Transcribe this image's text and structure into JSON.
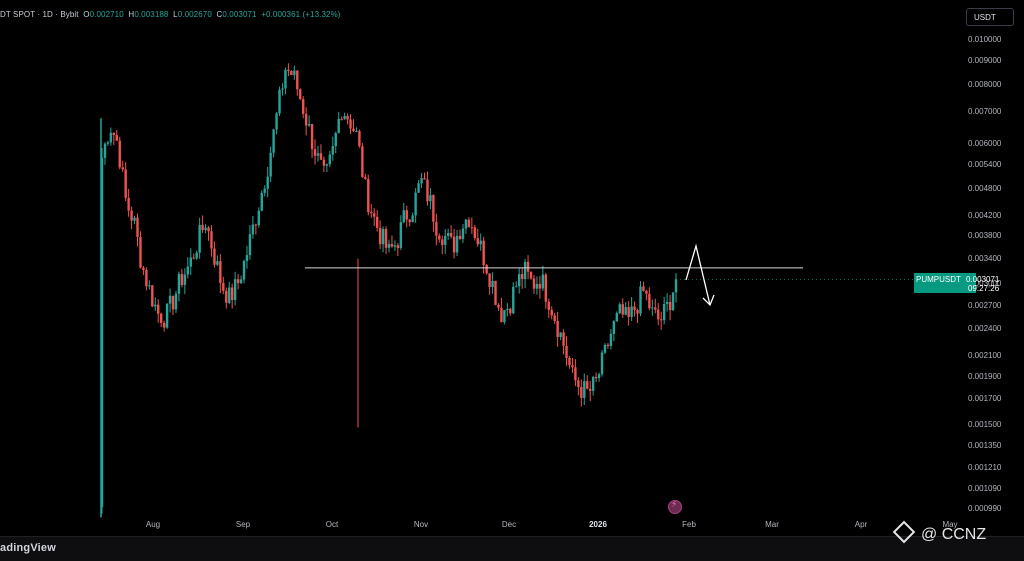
{
  "header": {
    "symbol_text": "DT SPOT · 1D · Bybit",
    "open_label": "O",
    "open_value": "0.002710",
    "high_label": "H",
    "high_value": "0.003188",
    "low_label": "L",
    "low_value": "0.002670",
    "close_label": "C",
    "close_value": "0.003071",
    "change_text": "+0.000361 (+13.32%)"
  },
  "toolbar": {
    "currency_label": "USDT"
  },
  "price_label": {
    "symbol": "PUMPUSDT",
    "value": "0.003071",
    "countdown": "09:27:26",
    "color": "#089981"
  },
  "colors": {
    "up": "#26a69a",
    "down": "#ef5350",
    "background": "#000000"
  },
  "chart_data": {
    "type": "candlestick",
    "y_scale": "log",
    "y_ticks": [
      "0.010000",
      "0.009000",
      "0.008000",
      "0.007000",
      "0.006000",
      "0.005400",
      "0.004800",
      "0.004200",
      "0.003800",
      "0.003400",
      "0.003000",
      "0.002700",
      "0.002400",
      "0.002100",
      "0.001900",
      "0.001700",
      "0.001500",
      "0.001350",
      "0.001210",
      "0.001090",
      "0.000990"
    ],
    "x_ticks": [
      {
        "label": "Aug"
      },
      {
        "label": "Sep"
      },
      {
        "label": "Oct"
      },
      {
        "label": "Nov"
      },
      {
        "label": "Dec"
      },
      {
        "label": "2026",
        "bold": true
      },
      {
        "label": "Feb"
      },
      {
        "label": "Mar"
      },
      {
        "label": "Apr"
      },
      {
        "label": "May"
      }
    ],
    "resistance_level": 0.00325,
    "close_path": [
      0.0056,
      0.0066,
      0.006,
      0.0045,
      0.0041,
      0.0033,
      0.0029,
      0.0026,
      0.00255,
      0.0028,
      0.0031,
      0.0033,
      0.0037,
      0.0041,
      0.0035,
      0.003,
      0.0028,
      0.003,
      0.0034,
      0.004,
      0.0047,
      0.0056,
      0.007,
      0.0087,
      0.0084,
      0.0074,
      0.0064,
      0.0056,
      0.005,
      0.0058,
      0.0072,
      0.0068,
      0.0062,
      0.0048,
      0.0042,
      0.0038,
      0.0035,
      0.0037,
      0.0042,
      0.0044,
      0.005,
      0.0046,
      0.004,
      0.0038,
      0.0036,
      0.004,
      0.0042,
      0.0038,
      0.0034,
      0.003,
      0.0026,
      0.0027,
      0.003,
      0.0032,
      0.003,
      0.0031,
      0.0028,
      0.0025,
      0.0022,
      0.0019,
      0.0018,
      0.00175,
      0.00185,
      0.0021,
      0.0024,
      0.0026,
      0.0025,
      0.0027,
      0.0029,
      0.0026,
      0.0025,
      0.0027,
      0.00307
    ]
  },
  "annotation": {
    "arrow": "down-projection"
  },
  "branding": {
    "tradingview": "adingView",
    "watermark": "@ CCNZ"
  }
}
